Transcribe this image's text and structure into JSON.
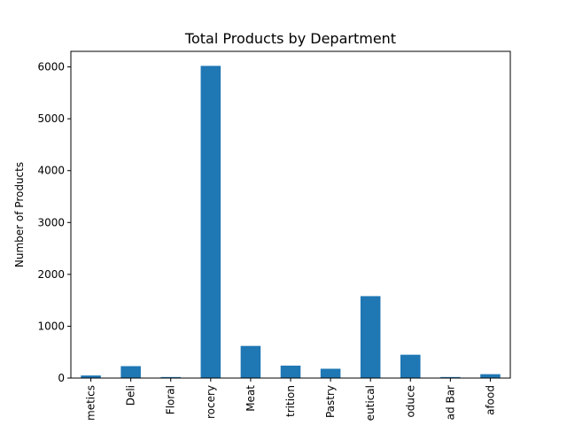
{
  "chart_data": {
    "type": "bar",
    "title": "Total Products by Department",
    "xlabel": "",
    "ylabel": "Number of Products",
    "ylim": [
      0,
      6300
    ],
    "yticks": [
      0,
      1000,
      2000,
      3000,
      4000,
      5000,
      6000
    ],
    "grid": false,
    "legend": "none",
    "categories": [
      "Cosmetics",
      "Deli",
      "Floral",
      "Grocery",
      "Meat",
      "Nutrition",
      "Pastry",
      "Pharmaceutical",
      "Produce",
      "Salad Bar",
      "Seafood"
    ],
    "category_labels_visible": [
      "metics",
      "Deli",
      "Floral",
      "rocery",
      "Meat",
      "trition",
      "Pastry",
      "eutical",
      "oduce",
      "ad Bar",
      "afood"
    ],
    "values": [
      50,
      230,
      20,
      6020,
      620,
      240,
      180,
      1580,
      450,
      20,
      75
    ],
    "bar_color": "#1f77b4"
  }
}
